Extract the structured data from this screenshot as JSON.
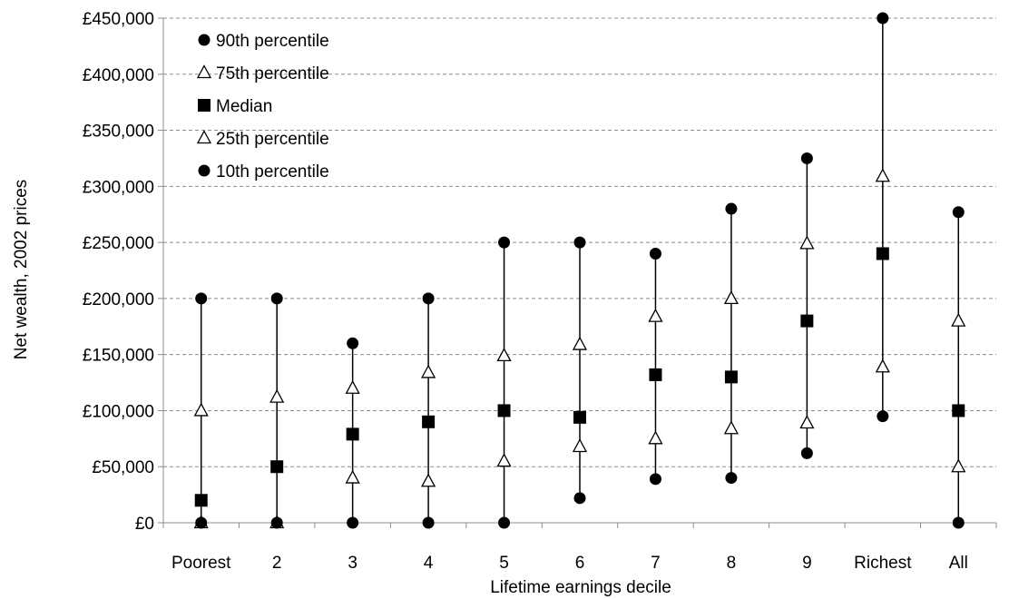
{
  "chart_data": {
    "type": "scatter",
    "title": "",
    "xlabel": "Lifetime earnings decile",
    "ylabel": "Net wealth, 2002 prices",
    "categories": [
      "Poorest",
      "2",
      "3",
      "4",
      "5",
      "6",
      "7",
      "8",
      "9",
      "Richest",
      "All"
    ],
    "ylim": [
      0,
      450000
    ],
    "yticks": [
      0,
      50000,
      100000,
      150000,
      200000,
      250000,
      300000,
      350000,
      400000,
      450000
    ],
    "ytick_labels": [
      "£0",
      "£50,000",
      "£100,000",
      "£150,000",
      "£200,000",
      "£250,000",
      "£300,000",
      "£350,000",
      "£400,000",
      "£450,000"
    ],
    "grid": true,
    "legend_position": "top-left",
    "series": [
      {
        "name": "90th percentile",
        "marker": "circle-filled",
        "values": [
          200000,
          200000,
          160000,
          200000,
          250000,
          250000,
          240000,
          280000,
          325000,
          450000,
          277000
        ]
      },
      {
        "name": "75th percentile",
        "marker": "triangle-open",
        "values": [
          100000,
          112000,
          120000,
          134000,
          149000,
          159000,
          184000,
          200000,
          249000,
          309000,
          180000
        ]
      },
      {
        "name": "Median",
        "marker": "square-filled",
        "values": [
          20000,
          50000,
          79000,
          90000,
          100000,
          94000,
          132000,
          130000,
          180000,
          240000,
          100000
        ]
      },
      {
        "name": "25th percentile",
        "marker": "triangle-open",
        "values": [
          0,
          0,
          40000,
          37000,
          55000,
          68000,
          75000,
          84000,
          89000,
          139000,
          50000
        ]
      },
      {
        "name": "10th percentile",
        "marker": "circle-filled",
        "values": [
          0,
          0,
          0,
          0,
          0,
          22000,
          39000,
          40000,
          62000,
          95000,
          0
        ]
      }
    ]
  }
}
